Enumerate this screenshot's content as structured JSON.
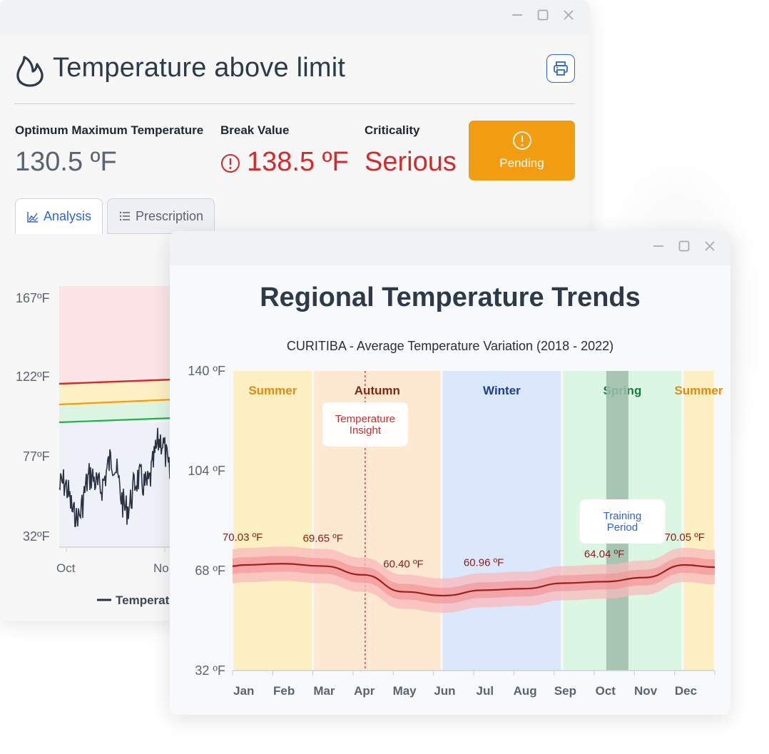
{
  "colors": {
    "accent": "#2f66d0",
    "alert": "#d42a2a",
    "pending": "#f29c11",
    "text": "#2d3a4a"
  },
  "alert_window": {
    "title": "Temperature above limit",
    "icon": "flame-icon",
    "print_icon": "printer-icon",
    "metrics": {
      "optimum_label": "Optimum Maximum Temperature",
      "optimum_value": "130.5 ºF",
      "break_label": "Break Value",
      "break_value": "138.5 ºF",
      "criticality_label": "Criticality",
      "criticality_value": "Serious"
    },
    "status_button": "Pending",
    "tabs": [
      {
        "label": "Analysis",
        "active": true
      },
      {
        "label": "Prescription",
        "active": false
      }
    ],
    "chart": {
      "y_ticks": [
        "167ºF",
        "122ºF",
        "77ºF",
        "32ºF"
      ],
      "x_ticks": [
        "Oct",
        "No"
      ],
      "legend": "Temperat"
    }
  },
  "trends_window": {
    "title": "Regional Temperature Trends",
    "chart_data": {
      "type": "line",
      "subtitle": "CURITIBA - Average Temperature Variation (2018 - 2022)",
      "categories": [
        "Jan",
        "Feb",
        "Mar",
        "Apr",
        "May",
        "Jun",
        "Jul",
        "Aug",
        "Sep",
        "Oct",
        "Nov",
        "Dec"
      ],
      "y_ticks": [
        "140 ºF",
        "104 ºF",
        "68 ºF",
        "32 ºF"
      ],
      "ylim": [
        32,
        140
      ],
      "series": [
        {
          "values": [
            70.03,
            70.5,
            69.65,
            66.5,
            60.4,
            59.0,
            60.96,
            61.5,
            63.5,
            64.04,
            65.5,
            70.05
          ]
        }
      ],
      "point_labels": [
        {
          "month": "Jan",
          "text": "70.03 ºF"
        },
        {
          "month": "Mar",
          "text": "69.65 ºF"
        },
        {
          "month": "May",
          "text": "60.40 ºF"
        },
        {
          "month": "Jul",
          "text": "60.96 ºF"
        },
        {
          "month": "Oct",
          "text": "64.04 ºF"
        },
        {
          "month": "Dec",
          "text": "70.05 ºF"
        }
      ],
      "seasons": [
        {
          "name": "Summer",
          "start": 0,
          "end": 2,
          "fill": "#fcefc3",
          "color": "#e08a12"
        },
        {
          "name": "Autumn",
          "start": 2,
          "end": 5.2,
          "fill": "#fde8d2",
          "color": "#7a2a10"
        },
        {
          "name": "Winter",
          "start": 5.2,
          "end": 8.2,
          "fill": "#dbe8fb",
          "color": "#1d3e8c"
        },
        {
          "name": "Spring",
          "start": 8.2,
          "end": 11.2,
          "fill": "#dcf6e4",
          "color": "#1a7a3a"
        },
        {
          "name": "Summer",
          "start": 11.2,
          "end": 12,
          "fill": "#fcefc3",
          "color": "#e08a12"
        }
      ],
      "annotations": [
        {
          "text": [
            "Temperature",
            "Insight"
          ],
          "color": "#d42a2a",
          "month": 3.3
        },
        {
          "text": [
            "Training",
            "Period"
          ],
          "color": "#2f66d0",
          "month": 9.7
        }
      ]
    }
  }
}
